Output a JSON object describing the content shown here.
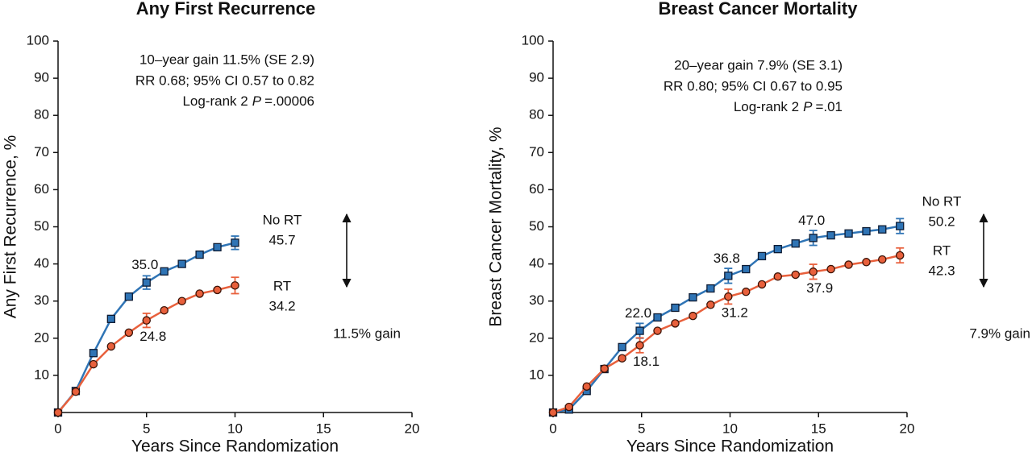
{
  "chart_data": [
    {
      "type": "line",
      "title": "Any First Recurrence",
      "x_label": "Years Since Randomization",
      "y_label": "Any First Recurrence, %",
      "xlim": [
        0,
        20
      ],
      "xticks": [
        0,
        5,
        10,
        15,
        20
      ],
      "ylim": [
        0,
        100
      ],
      "yticks": [
        10,
        20,
        30,
        40,
        50,
        60,
        70,
        80,
        90,
        100
      ],
      "x": [
        0,
        1,
        2,
        3,
        4,
        5,
        6,
        7,
        8,
        9,
        10
      ],
      "series": [
        {
          "name": "No RT",
          "color": "#2f74b5",
          "marker": "square",
          "values": [
            0,
            5.8,
            16,
            25.2,
            31.2,
            35,
            38,
            40,
            42.5,
            44.5,
            45.7
          ],
          "errors": [
            null,
            null,
            null,
            null,
            null,
            1.8,
            null,
            null,
            null,
            null,
            1.8
          ],
          "value_labels": [
            null,
            null,
            null,
            null,
            null,
            "35.0",
            null,
            null,
            null,
            null,
            "45.7"
          ]
        },
        {
          "name": "RT",
          "color": "#e8603c",
          "marker": "circle",
          "values": [
            0,
            5.6,
            13,
            17.8,
            21.5,
            24.8,
            27.5,
            30,
            32,
            33,
            34.2
          ],
          "errors": [
            null,
            null,
            null,
            null,
            null,
            1.9,
            null,
            null,
            null,
            null,
            2.2
          ],
          "value_labels": [
            null,
            null,
            null,
            null,
            null,
            "24.8",
            null,
            null,
            null,
            null,
            "34.2"
          ]
        }
      ],
      "annotations": {
        "stats": [
          "10–year gain 11.5% (SE 2.9)",
          "RR 0.68; 95% CI 0.57 to 0.82"
        ],
        "test_prefix": "Log-rank 2",
        "test_symbol": "P",
        "test_value": "=.00006",
        "gain": "11.5% gain"
      }
    },
    {
      "type": "line",
      "title": "Breast Cancer Mortality",
      "x_label": "Years Since Randomization",
      "y_label": "Breast Cancer Mortality, %",
      "xlim": [
        0,
        20
      ],
      "xticks": [
        0,
        5,
        10,
        15,
        20
      ],
      "ylim": [
        0,
        100
      ],
      "yticks": [
        10,
        20,
        30,
        40,
        50,
        60,
        70,
        80,
        90,
        100
      ],
      "x": [
        0,
        0.9,
        1.9,
        2.9,
        3.9,
        4.9,
        5.9,
        6.9,
        7.9,
        8.9,
        9.9,
        10.9,
        11.8,
        12.7,
        13.7,
        14.7,
        15.7,
        16.7,
        17.7,
        18.6,
        19.6
      ],
      "series": [
        {
          "name": "No RT",
          "color": "#2f74b5",
          "marker": "square",
          "values": [
            0,
            0.8,
            5.8,
            11.7,
            17.6,
            22,
            25.6,
            28.2,
            31,
            33.4,
            36.8,
            38.6,
            42.1,
            44,
            45.5,
            47,
            47.7,
            48.2,
            48.8,
            49.3,
            50.2
          ],
          "errors": [
            null,
            null,
            null,
            null,
            null,
            2,
            null,
            null,
            null,
            null,
            2,
            null,
            null,
            null,
            null,
            2,
            null,
            null,
            null,
            null,
            2
          ],
          "value_labels": [
            null,
            null,
            null,
            null,
            null,
            "22.0",
            null,
            null,
            null,
            null,
            "36.8",
            null,
            null,
            null,
            null,
            "47.0",
            null,
            null,
            null,
            null,
            "50.2"
          ]
        },
        {
          "name": "RT",
          "color": "#e8603c",
          "marker": "circle",
          "values": [
            0,
            1.5,
            7,
            11.8,
            14.6,
            18.1,
            22,
            24,
            26,
            29,
            31.2,
            32.5,
            34.5,
            36.6,
            37.1,
            37.9,
            38.6,
            39.8,
            40.5,
            41.2,
            42.3
          ],
          "errors": [
            null,
            null,
            null,
            null,
            null,
            2,
            null,
            null,
            null,
            null,
            2,
            null,
            null,
            null,
            null,
            2,
            null,
            null,
            null,
            null,
            2
          ],
          "value_labels": [
            null,
            null,
            null,
            null,
            null,
            "18.1",
            null,
            null,
            null,
            null,
            "31.2",
            null,
            null,
            null,
            null,
            "37.9",
            null,
            null,
            null,
            null,
            "42.3"
          ]
        }
      ],
      "annotations": {
        "stats": [
          "20–year gain 7.9% (SE 3.1)",
          "RR 0.80; 95% CI 0.67 to 0.95"
        ],
        "test_prefix": "Log-rank 2",
        "test_symbol": "P",
        "test_value": "=.01",
        "gain": "7.9% gain"
      }
    }
  ]
}
